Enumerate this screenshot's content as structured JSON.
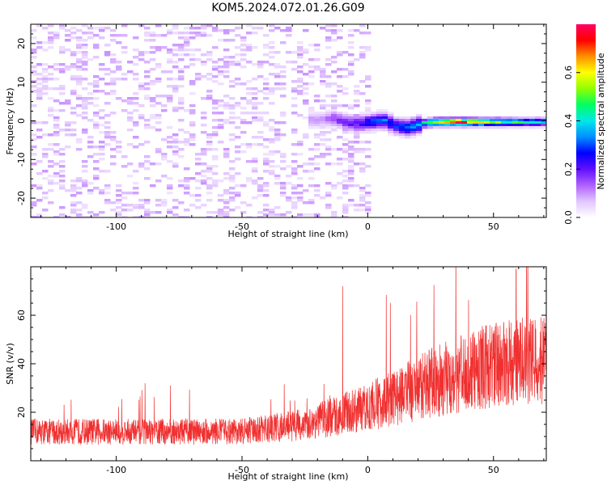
{
  "title": "KOM5.2024.072.01.26.G09",
  "colors": {
    "snr_line": "#f03030",
    "colorbar_stops": [
      "#ffffff",
      "#e2c6ff",
      "#b060ff",
      "#6010ff",
      "#0000ff",
      "#0090ff",
      "#00e8e8",
      "#00ff60",
      "#90ff00",
      "#ffff00",
      "#ff9000",
      "#ff0000",
      "#ff0060"
    ]
  },
  "chart_data": [
    {
      "type": "heatmap",
      "name": "spectrogram",
      "xlabel": "Height of straight line (km)",
      "ylabel": "Frequency (Hz)",
      "xlim": [
        -134,
        71
      ],
      "ylim": [
        -25,
        25
      ],
      "xticks": [
        -100,
        -50,
        0,
        50
      ],
      "xtick_labels": [
        "-100",
        "-50",
        "0",
        "50"
      ],
      "yticks": [
        -20,
        -10,
        0,
        10,
        20
      ],
      "ytick_labels": [
        "-20",
        "-10",
        "0",
        "10",
        "20"
      ],
      "colorbar": {
        "label": "Normalized spectral amplitude",
        "range": [
          0,
          0.8
        ],
        "ticks": [
          0.0,
          0.2,
          0.4,
          0.6
        ],
        "tick_labels": [
          "0.0",
          "0.2",
          "0.4",
          "0.6"
        ]
      },
      "ridge": [
        {
          "x": -20,
          "y": 0.5,
          "amplitude": 0.1
        },
        {
          "x": -15,
          "y": 1.0,
          "amplitude": 0.15
        },
        {
          "x": -10,
          "y": 0.0,
          "amplitude": 0.2
        },
        {
          "x": -5,
          "y": -0.5,
          "amplitude": 0.22
        },
        {
          "x": 0,
          "y": 0.0,
          "amplitude": 0.28
        },
        {
          "x": 5,
          "y": 0.5,
          "amplitude": 0.32
        },
        {
          "x": 10,
          "y": -1.0,
          "amplitude": 0.28
        },
        {
          "x": 15,
          "y": -1.5,
          "amplitude": 0.32
        },
        {
          "x": 20,
          "y": -0.5,
          "amplitude": 0.38
        },
        {
          "x": 25,
          "y": 0.0,
          "amplitude": 0.62
        },
        {
          "x": 30,
          "y": 0.0,
          "amplitude": 0.72
        },
        {
          "x": 35,
          "y": 0.0,
          "amplitude": 0.75
        },
        {
          "x": 40,
          "y": 0.0,
          "amplitude": 0.7
        },
        {
          "x": 45,
          "y": 0.0,
          "amplitude": 0.62
        },
        {
          "x": 50,
          "y": 0.0,
          "amplitude": 0.55
        },
        {
          "x": 55,
          "y": 0.0,
          "amplitude": 0.5
        },
        {
          "x": 60,
          "y": 0.0,
          "amplitude": 0.45
        },
        {
          "x": 65,
          "y": 0.0,
          "amplitude": 0.4
        },
        {
          "x": 70,
          "y": 0.0,
          "amplitude": 0.38
        }
      ],
      "noise_amplitude": 0.05
    },
    {
      "type": "line",
      "name": "snr",
      "xlabel": "Height of straight line (km)",
      "ylabel": "SNR (v/v)",
      "xlim": [
        -134,
        71
      ],
      "ylim": [
        0,
        80
      ],
      "xticks": [
        -100,
        -50,
        0,
        50
      ],
      "xtick_labels": [
        "-100",
        "-50",
        "0",
        "50"
      ],
      "yticks": [
        20,
        40,
        60
      ],
      "ytick_labels": [
        "20",
        "40",
        "60"
      ],
      "series": [
        {
          "trend_x": [
            -134,
            -100,
            -50,
            -25,
            0,
            25,
            50,
            71
          ],
          "trend_y": [
            12,
            12,
            12,
            15,
            22,
            32,
            40,
            42
          ],
          "spike_x": [
            -10,
            59
          ],
          "spike_y": [
            72,
            79
          ]
        }
      ]
    }
  ]
}
